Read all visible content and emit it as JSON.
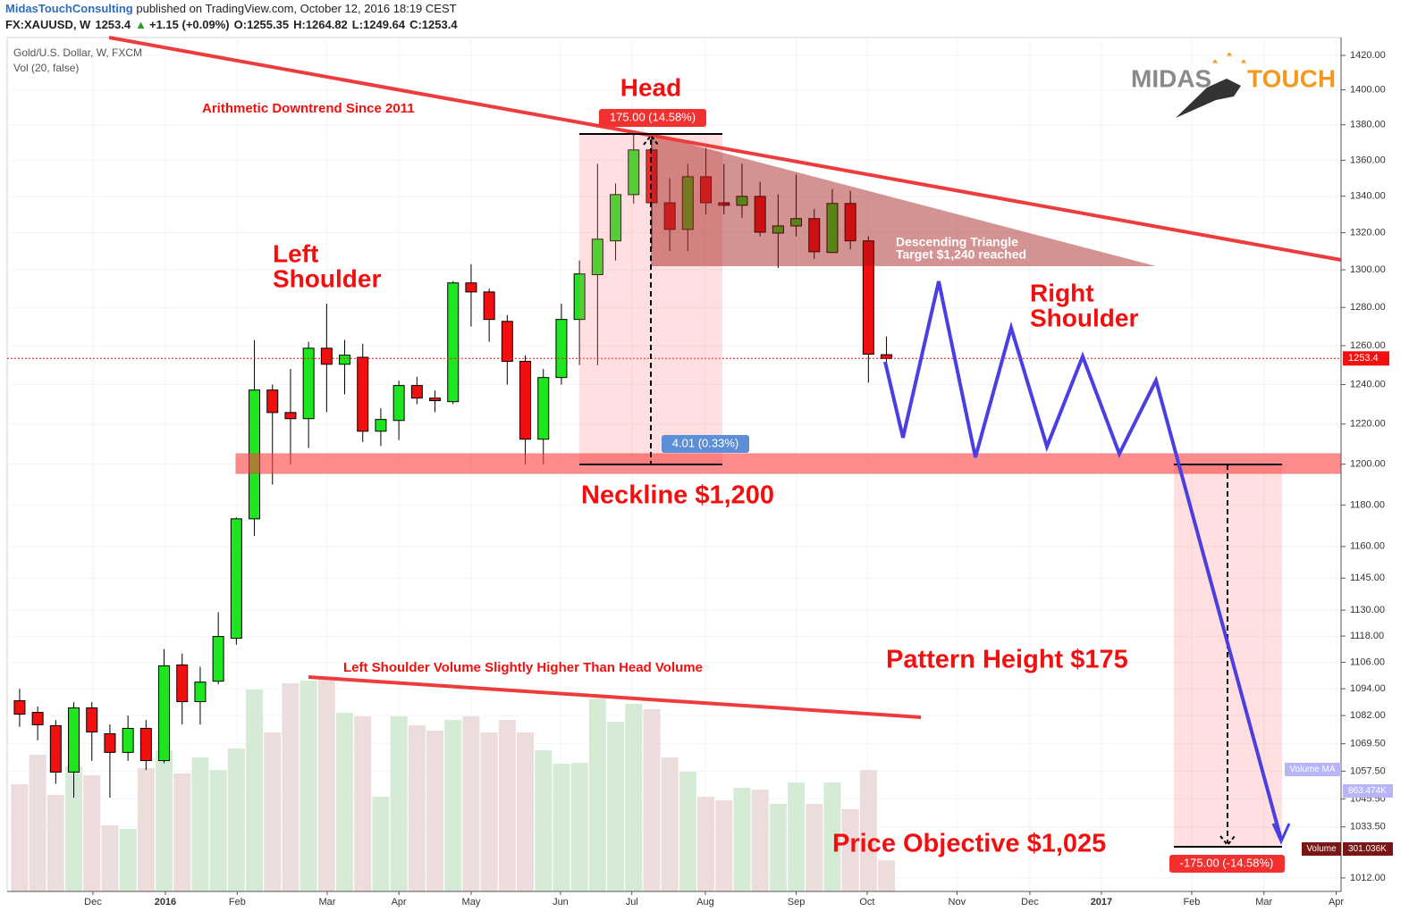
{
  "header": {
    "author": "MidasTouchConsulting",
    "published": " published on TradingView.com, October 12, 2016 18:19 CEST",
    "symbol": "FX:XAUUSD, W",
    "change": "+1.15 (+0.09%)",
    "ohlc_labels": [
      "O:",
      "H:",
      "L:",
      "C:"
    ]
  },
  "chart_data": {
    "type": "candlestick",
    "title": "Gold/U.S. Dollar, W, FXCM",
    "indicator": "Vol (20, false)",
    "x": [
      0,
      1,
      2,
      3,
      4,
      5,
      6,
      7,
      8,
      9,
      10,
      11,
      12,
      13,
      14,
      15,
      16,
      17,
      18,
      19,
      20,
      21,
      22,
      23,
      24,
      25,
      26,
      27,
      28,
      29,
      30,
      31,
      32,
      33,
      34,
      35,
      36,
      37,
      38,
      39,
      40,
      41,
      42,
      43,
      44,
      45,
      46,
      47,
      48
    ],
    "open": [
      1088.6,
      1083.4,
      1077.5,
      1057.1,
      1085.4,
      1073.9,
      1065.7,
      1076.3,
      1062.1,
      1104.8,
      1088.2,
      1097.4,
      1117,
      1173.3,
      1237.2,
      1225.8,
      1222.7,
      1258.7,
      1250.4,
      1254,
      1216.4,
      1221.8,
      1239.5,
      1233.1,
      1231.3,
      1293,
      1288.2,
      1272.7,
      1251.9,
      1212.4,
      1243.6,
      1273.7,
      1297.4,
      1315.6,
      1340.9,
      1365.8,
      1336.4,
      1321.8,
      1350.8,
      1336.4,
      1335,
      1339.9,
      1319.8,
      1323.7,
      1327.7,
      1309.3,
      1336,
      1315.6,
      1255.35
    ],
    "high": [
      1094,
      1086,
      1080,
      1088,
      1088,
      1078,
      1082,
      1080,
      1112,
      1110,
      1104,
      1129,
      1174,
      1263,
      1240,
      1248,
      1262,
      1282,
      1263,
      1261,
      1228,
      1242,
      1244,
      1237,
      1294,
      1303,
      1290,
      1276,
      1255,
      1248,
      1282,
      1305,
      1358,
      1347,
      1375,
      1375,
      1350,
      1358,
      1367,
      1358,
      1358,
      1348,
      1341,
      1352,
      1333,
      1344,
      1343,
      1318,
      1264.82
    ],
    "low": [
      1077,
      1071,
      1052,
      1046,
      1062,
      1046,
      1062,
      1058,
      1061,
      1078,
      1078,
      1096,
      1114,
      1165,
      1190,
      1200,
      1208,
      1226,
      1235,
      1211,
      1209,
      1212,
      1230,
      1226,
      1230,
      1270,
      1262,
      1240,
      1200,
      1200,
      1240,
      1250,
      1250,
      1305,
      1336,
      1311,
      1310,
      1310,
      1330,
      1330,
      1328,
      1318,
      1301,
      1318,
      1306,
      1309,
      1311,
      1241,
      1249.64
    ],
    "close": [
      1082.6,
      1077.9,
      1057.1,
      1085.4,
      1074.7,
      1065.7,
      1076.3,
      1062.1,
      1104.4,
      1088.2,
      1097,
      1117.8,
      1173.3,
      1237.2,
      1225.8,
      1222.7,
      1258.7,
      1250.4,
      1255.1,
      1216.4,
      1222.3,
      1239.5,
      1233.1,
      1231.8,
      1293,
      1288.2,
      1273.7,
      1251.9,
      1212.4,
      1243.6,
      1273.7,
      1297.8,
      1316.5,
      1340.9,
      1365.8,
      1336.4,
      1321.8,
      1350.8,
      1336.4,
      1335,
      1339.9,
      1320.3,
      1323.7,
      1327.7,
      1309.7,
      1336,
      1315.6,
      1255.6,
      1253.4
    ],
    "volume": [
      1037,
      1322,
      933,
      1210,
      1124,
      640,
      605,
      1193,
      1366,
      1141,
      1296,
      1175,
      1383,
      1953,
      1538,
      2014,
      2040,
      2057,
      1729,
      1694,
      916,
      1694,
      1608,
      1556,
      1659,
      1694,
      1538,
      1659,
      1538,
      1366,
      1236,
      1245,
      1867,
      1642,
      1815,
      1763,
      1296,
      1158,
      916,
      882,
      1003,
      985,
      847,
      1054,
      847,
      1054,
      795,
      1175,
      301.036
    ],
    "volume_label": "Volume",
    "volume_last_label": "301.036K",
    "volume_ma_label": "Volume MA",
    "volume_ma_last_label": "863.474K",
    "up_color": "#1ee61e",
    "down_color": "#f01010",
    "volume_up_color": "#d6ebd6",
    "volume_down_color": "#ecdcdc",
    "log_scale": true,
    "grid": true,
    "xlim": [
      -0.69,
      73.17
    ],
    "ylim": [
      1006.4,
      1430.5
    ],
    "xticks": [
      {
        "value": 4.06,
        "label": "Dec"
      },
      {
        "value": 8.07,
        "label": "2016"
      },
      {
        "value": 12.05,
        "label": "Feb"
      },
      {
        "value": 17.03,
        "label": "Mar"
      },
      {
        "value": 21,
        "label": "Apr"
      },
      {
        "value": 25,
        "label": "May"
      },
      {
        "value": 29.95,
        "label": "Jun"
      },
      {
        "value": 33.9,
        "label": "Jul"
      },
      {
        "value": 37.97,
        "label": "Aug"
      },
      {
        "value": 43,
        "label": "Sep"
      },
      {
        "value": 46.93,
        "label": "Oct"
      },
      {
        "value": 51.9,
        "label": "Nov"
      },
      {
        "value": 55.94,
        "label": "Dec"
      },
      {
        "value": 59.9,
        "label": "2017"
      },
      {
        "value": 64.9,
        "label": "Feb"
      },
      {
        "value": 68.9,
        "label": "Mar"
      },
      {
        "value": 72.9,
        "label": "Apr"
      }
    ],
    "yticks": [
      {
        "value": 1420,
        "label": "1420.00"
      },
      {
        "value": 1400,
        "label": "1400.00"
      },
      {
        "value": 1380,
        "label": "1380.00"
      },
      {
        "value": 1360,
        "label": "1360.00"
      },
      {
        "value": 1340,
        "label": "1340.00"
      },
      {
        "value": 1320,
        "label": "1320.00"
      },
      {
        "value": 1300,
        "label": "1300.00"
      },
      {
        "value": 1280,
        "label": "1280.00"
      },
      {
        "value": 1260,
        "label": "1260.00"
      },
      {
        "value": 1240,
        "label": "1240.00"
      },
      {
        "value": 1220,
        "label": "1220.00"
      },
      {
        "value": 1200,
        "label": "1200.00"
      },
      {
        "value": 1180,
        "label": "1180.00"
      },
      {
        "value": 1160,
        "label": "1160.00"
      },
      {
        "value": 1145,
        "label": "1145.00"
      },
      {
        "value": 1130,
        "label": "1130.00"
      },
      {
        "value": 1118,
        "label": "1118.00"
      },
      {
        "value": 1106,
        "label": "1106.00"
      },
      {
        "value": 1094,
        "label": "1094.00"
      },
      {
        "value": 1082,
        "label": "1082.00"
      },
      {
        "value": 1069.5,
        "label": "1069.50"
      },
      {
        "value": 1057.5,
        "label": "1057.50"
      },
      {
        "value": 1045.5,
        "label": "1045.50"
      },
      {
        "value": 1033.5,
        "label": "1033.50"
      },
      {
        "value": 1012,
        "label": "1012.00"
      }
    ]
  },
  "annotations": {
    "head": "Head",
    "left_shoulder": [
      "Left",
      "Shoulder"
    ],
    "right_shoulder": [
      "Right",
      "Shoulder"
    ],
    "downtrend": "Arithmetic Downtrend Since 2011",
    "triangle": [
      "Descending Triangle",
      "Target $1,240 reached"
    ],
    "neckline": "Neckline $1,200",
    "pattern_height": "Pattern Height $175",
    "objective": "Price Objective $1,025",
    "volume_note": "Left Shoulder Volume Slightly Higher Than Head Volume",
    "head_measure": "175.00 (14.58%)",
    "neck_measure": "4.01 (0.33%)",
    "target_measure": "-175.00 (-14.58%)"
  },
  "logo": {
    "left": "MIDAS",
    "right": "TOUCH"
  }
}
